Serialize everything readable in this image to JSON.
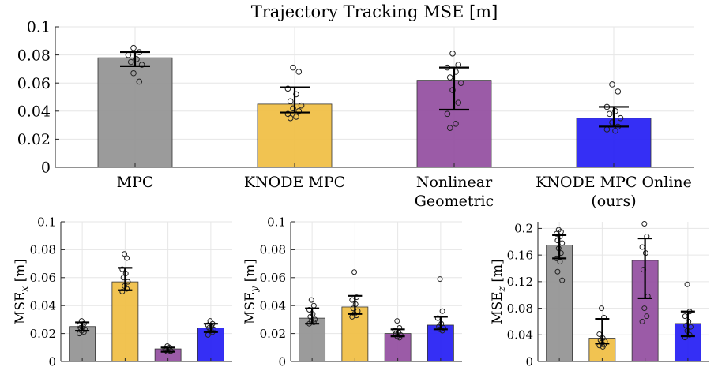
{
  "chart_data": [
    {
      "type": "bar",
      "title": "Trajectory Tracking MSE [m]",
      "xlabel": "",
      "ylabel": "",
      "categories": [
        [
          "MPC"
        ],
        [
          "KNODE MPC"
        ],
        [
          "Nonlinear",
          "Geometric"
        ],
        [
          "KNODE MPC Online",
          "(ours)"
        ]
      ],
      "values": [
        0.078,
        0.045,
        0.062,
        0.035
      ],
      "error_low": [
        0.072,
        0.039,
        0.041,
        0.029
      ],
      "error_high": [
        0.082,
        0.057,
        0.071,
        0.043
      ],
      "points": [
        [
          0.085,
          0.082,
          0.08,
          0.077,
          0.075,
          0.073,
          0.067,
          0.061
        ],
        [
          0.071,
          0.068,
          0.056,
          0.052,
          0.047,
          0.044,
          0.042,
          0.04,
          0.038,
          0.036,
          0.035
        ],
        [
          0.081,
          0.073,
          0.071,
          0.068,
          0.064,
          0.06,
          0.055,
          0.046,
          0.038,
          0.031,
          0.028
        ],
        [
          0.059,
          0.054,
          0.043,
          0.04,
          0.038,
          0.035,
          0.032,
          0.029,
          0.027,
          0.026
        ]
      ],
      "yticks": [
        "0",
        "0.02",
        "0.04",
        "0.06",
        "0.08",
        "0.1"
      ],
      "ylim": [
        0,
        0.1
      ],
      "grid": true,
      "colors": [
        "#969696",
        "#f0c048",
        "#9652a2",
        "#2a24f4"
      ]
    },
    {
      "type": "bar",
      "ylabel": "MSE_x [m]",
      "ylabel_main": "MSE",
      "ylabel_sub": "x",
      "ylabel_unit": " [m]",
      "values": [
        0.025,
        0.057,
        0.009,
        0.024
      ],
      "error_low": [
        0.022,
        0.051,
        0.007,
        0.021
      ],
      "error_high": [
        0.028,
        0.067,
        0.01,
        0.027
      ],
      "points": [
        [
          0.029,
          0.027,
          0.026,
          0.025,
          0.024,
          0.023,
          0.022,
          0.021,
          0.02
        ],
        [
          0.077,
          0.074,
          0.066,
          0.063,
          0.06,
          0.057,
          0.054,
          0.052,
          0.05
        ],
        [
          0.011,
          0.01,
          0.009,
          0.0085,
          0.008,
          0.0075,
          0.007
        ],
        [
          0.029,
          0.027,
          0.026,
          0.025,
          0.024,
          0.023,
          0.022,
          0.021,
          0.019
        ]
      ],
      "yticks": [
        "0",
        "0.02",
        "0.04",
        "0.06",
        "0.08",
        "0.1"
      ],
      "ylim": [
        0,
        0.1
      ],
      "grid": true,
      "colors": [
        "#969696",
        "#f0c048",
        "#9652a2",
        "#2a24f4"
      ]
    },
    {
      "type": "bar",
      "ylabel": "MSE_y [m]",
      "ylabel_main": "MSE",
      "ylabel_sub": "y",
      "ylabel_unit": " [m]",
      "values": [
        0.031,
        0.039,
        0.02,
        0.026
      ],
      "error_low": [
        0.027,
        0.034,
        0.018,
        0.023
      ],
      "error_high": [
        0.038,
        0.047,
        0.023,
        0.032
      ],
      "points": [
        [
          0.044,
          0.04,
          0.037,
          0.034,
          0.032,
          0.03,
          0.029,
          0.028,
          0.027
        ],
        [
          0.064,
          0.046,
          0.044,
          0.041,
          0.038,
          0.036,
          0.034,
          0.033,
          0.032
        ],
        [
          0.029,
          0.024,
          0.022,
          0.021,
          0.02,
          0.019,
          0.018,
          0.017
        ],
        [
          0.059,
          0.036,
          0.031,
          0.027,
          0.025,
          0.024,
          0.023,
          0.022
        ]
      ],
      "yticks": [
        "0",
        "0.02",
        "0.04",
        "0.06",
        "0.08",
        "0.1"
      ],
      "ylim": [
        0,
        0.1
      ],
      "grid": true,
      "colors": [
        "#969696",
        "#f0c048",
        "#9652a2",
        "#2a24f4"
      ]
    },
    {
      "type": "bar",
      "ylabel": "MSE_z [m]",
      "ylabel_main": "MSE",
      "ylabel_sub": "z",
      "ylabel_unit": " [m]",
      "values": [
        0.175,
        0.035,
        0.152,
        0.057
      ],
      "error_low": [
        0.155,
        0.027,
        0.095,
        0.038
      ],
      "error_high": [
        0.19,
        0.064,
        0.185,
        0.075
      ],
      "points": [
        [
          0.198,
          0.195,
          0.192,
          0.188,
          0.182,
          0.178,
          0.17,
          0.163,
          0.155,
          0.15,
          0.135,
          0.122
        ],
        [
          0.08,
          0.066,
          0.041,
          0.035,
          0.032,
          0.03,
          0.028,
          0.025,
          0.024,
          0.022
        ],
        [
          0.207,
          0.188,
          0.172,
          0.163,
          0.138,
          0.098,
          0.08,
          0.068,
          0.06
        ],
        [
          0.116,
          0.075,
          0.068,
          0.06,
          0.054,
          0.052,
          0.046,
          0.04,
          0.036
        ]
      ],
      "yticks": [
        "0",
        "0.04",
        "0.08",
        "0.12",
        "0.16",
        "0.2"
      ],
      "ylim": [
        0,
        0.21
      ],
      "grid": true,
      "colors": [
        "#969696",
        "#f0c048",
        "#9652a2",
        "#2a24f4"
      ]
    }
  ]
}
